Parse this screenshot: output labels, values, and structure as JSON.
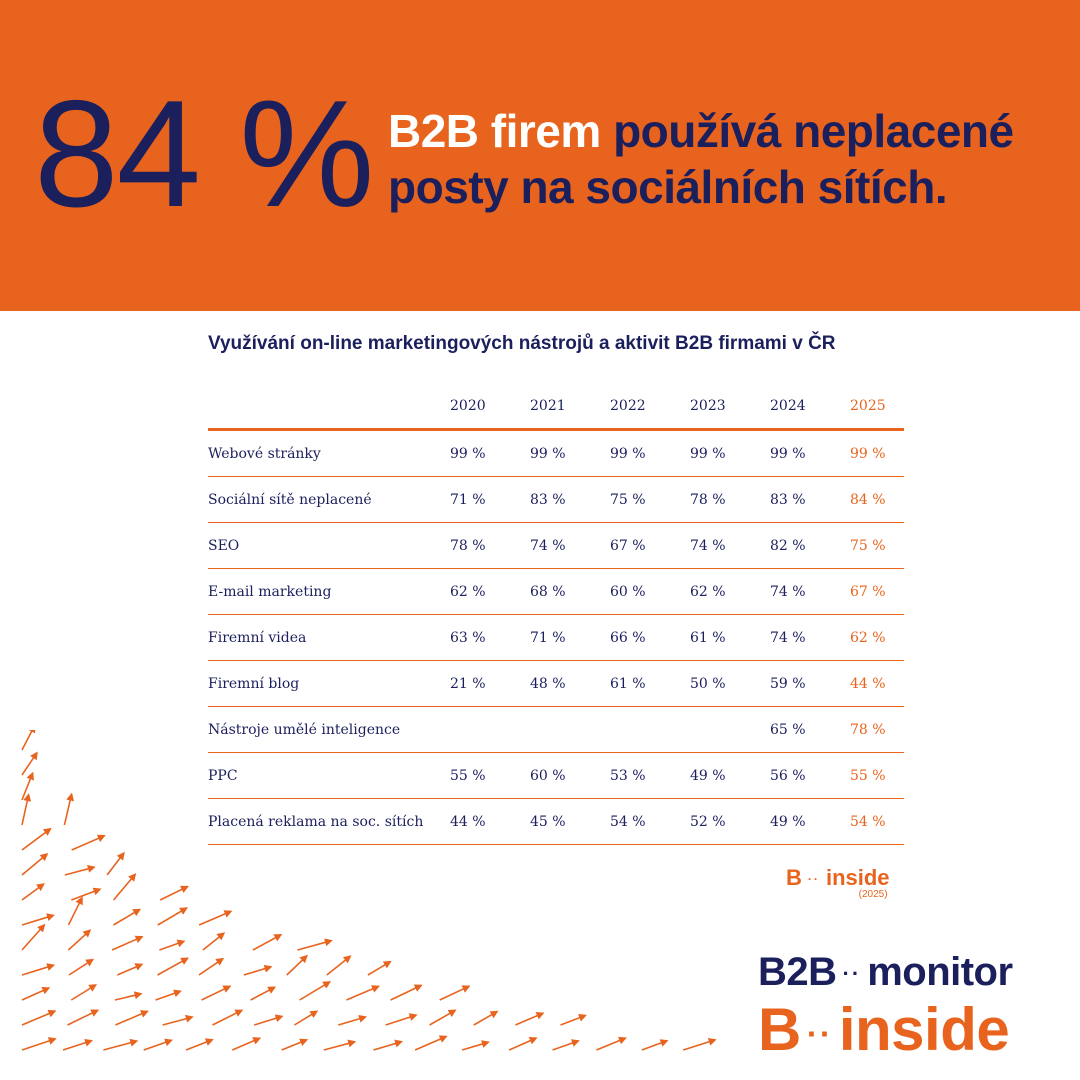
{
  "banner": {
    "stat": "84 %",
    "headline_white": "B2B firem",
    "headline_dark": "používá neplacené posty na sociálních sítích."
  },
  "chart_data": {
    "type": "table",
    "title": "Využívání on-line marketingových nástrojů a aktivit B2B firmami v ČR",
    "columns": [
      "2020",
      "2021",
      "2022",
      "2023",
      "2024",
      "2025"
    ],
    "rows": [
      {
        "label": "Webové stránky",
        "values": [
          "99 %",
          "99 %",
          "99 %",
          "99 %",
          "99 %",
          "99 %"
        ]
      },
      {
        "label": "Sociální sítě neplacené",
        "values": [
          "71 %",
          "83 %",
          "75 %",
          "78 %",
          "83 %",
          "84 %"
        ]
      },
      {
        "label": "SEO",
        "values": [
          "78 %",
          "74 %",
          "67 %",
          "74 %",
          "82 %",
          "75 %"
        ]
      },
      {
        "label": "E-mail marketing",
        "values": [
          "62 %",
          "68 %",
          "60 %",
          "62 %",
          "74 %",
          "67 %"
        ]
      },
      {
        "label": "Firemní videa",
        "values": [
          "63 %",
          "71 %",
          "66 %",
          "61 %",
          "74 %",
          "62 %"
        ]
      },
      {
        "label": "Firemní blog",
        "values": [
          "21 %",
          "48 %",
          "61 %",
          "50 %",
          "59 %",
          "44 %"
        ]
      },
      {
        "label": "Nástroje umělé inteligence",
        "values": [
          "",
          "",
          "",
          "",
          "65 %",
          "78 %"
        ]
      },
      {
        "label": "PPC",
        "values": [
          "55 %",
          "60 %",
          "53 %",
          "49 %",
          "56 %",
          "55 %"
        ]
      },
      {
        "label": "Placená reklama na soc. sítích",
        "values": [
          "44 %",
          "45 %",
          "54 %",
          "52 %",
          "49 %",
          "54 %"
        ]
      }
    ],
    "highlight_column": "2025",
    "highlight_color": "#e8641e"
  },
  "small_logo": {
    "b": "B",
    "dots": "··",
    "inside": "inside",
    "year": "(2025)"
  },
  "logo": {
    "monitor_b2b": "B2B",
    "monitor_dots": "··",
    "monitor_word": "monitor",
    "inside_b": "B",
    "inside_dots": "··",
    "inside_word": "inside"
  },
  "colors": {
    "orange": "#e8641e",
    "navy": "#1b1f5c",
    "white": "#ffffff"
  },
  "decor": {
    "icon": "arrow-field-decoration"
  }
}
